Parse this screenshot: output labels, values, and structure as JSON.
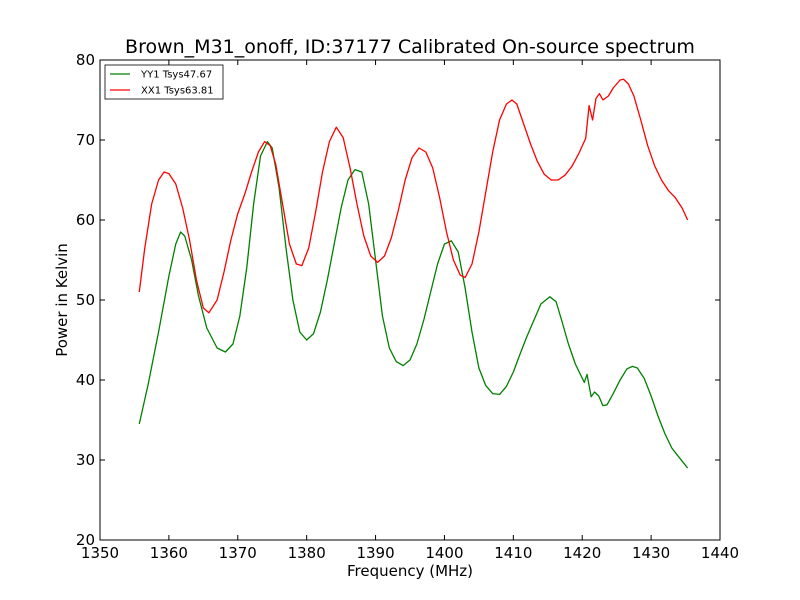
{
  "chart_data": {
    "type": "line",
    "title": "Brown_M31_onoff, ID:37177 Calibrated On-source spectrum",
    "xlabel": "Frequency (MHz)",
    "ylabel": "Power in Kelvin",
    "xlim": [
      1350,
      1440
    ],
    "ylim": [
      20,
      80
    ],
    "xticks": [
      "1350",
      "1360",
      "1370",
      "1380",
      "1390",
      "1400",
      "1410",
      "1420",
      "1430",
      "1440"
    ],
    "yticks": [
      "20",
      "30",
      "40",
      "50",
      "60",
      "70",
      "80"
    ],
    "grid": false,
    "legend_position": "top-left",
    "series": [
      {
        "name": "YY1 Tsys47.67",
        "color": "#008000",
        "points": [
          [
            1355.7,
            34.5
          ],
          [
            1357,
            39.5
          ],
          [
            1358.5,
            46
          ],
          [
            1360,
            53
          ],
          [
            1361,
            57
          ],
          [
            1361.7,
            58.5
          ],
          [
            1362.3,
            58
          ],
          [
            1363.3,
            55
          ],
          [
            1364.3,
            50.5
          ],
          [
            1365.5,
            46.5
          ],
          [
            1367,
            44
          ],
          [
            1368.2,
            43.5
          ],
          [
            1369.3,
            44.5
          ],
          [
            1370.3,
            48
          ],
          [
            1371.3,
            54
          ],
          [
            1372.3,
            62
          ],
          [
            1373.3,
            68
          ],
          [
            1374.3,
            69.8
          ],
          [
            1375,
            69
          ],
          [
            1376,
            64
          ],
          [
            1377,
            56.5
          ],
          [
            1378,
            50
          ],
          [
            1379,
            46
          ],
          [
            1380,
            45
          ],
          [
            1381,
            45.8
          ],
          [
            1382,
            48.5
          ],
          [
            1383,
            52.5
          ],
          [
            1384,
            57
          ],
          [
            1385,
            61.5
          ],
          [
            1386,
            65
          ],
          [
            1387,
            66.3
          ],
          [
            1388,
            66
          ],
          [
            1389,
            62
          ],
          [
            1390,
            55
          ],
          [
            1391,
            48
          ],
          [
            1392,
            44
          ],
          [
            1393,
            42.3
          ],
          [
            1394,
            41.8
          ],
          [
            1395,
            42.5
          ],
          [
            1396,
            44.5
          ],
          [
            1397,
            47.5
          ],
          [
            1398,
            51
          ],
          [
            1399,
            54.5
          ],
          [
            1400,
            57
          ],
          [
            1401,
            57.4
          ],
          [
            1402,
            56
          ],
          [
            1403,
            51.5
          ],
          [
            1404,
            46
          ],
          [
            1405,
            41.5
          ],
          [
            1406,
            39.3
          ],
          [
            1407,
            38.3
          ],
          [
            1408,
            38.2
          ],
          [
            1409,
            39.2
          ],
          [
            1410,
            41
          ],
          [
            1411,
            43.3
          ],
          [
            1412,
            45.5
          ],
          [
            1413,
            47.5
          ],
          [
            1414,
            49.5
          ],
          [
            1415.3,
            50.4
          ],
          [
            1416.2,
            49.8
          ],
          [
            1417,
            47.5
          ],
          [
            1418,
            44.5
          ],
          [
            1419,
            42
          ],
          [
            1420.3,
            39.7
          ],
          [
            1420.7,
            40.7
          ],
          [
            1421.3,
            37.9
          ],
          [
            1421.8,
            38.5
          ],
          [
            1422.4,
            38
          ],
          [
            1423,
            36.8
          ],
          [
            1423.6,
            36.9
          ],
          [
            1424.5,
            38.3
          ],
          [
            1425.5,
            40
          ],
          [
            1426.5,
            41.4
          ],
          [
            1427.3,
            41.7
          ],
          [
            1428,
            41.5
          ],
          [
            1429,
            40.2
          ],
          [
            1430,
            38
          ],
          [
            1431,
            35.5
          ],
          [
            1432,
            33.3
          ],
          [
            1433,
            31.5
          ],
          [
            1434,
            30.4
          ],
          [
            1435.3,
            29
          ]
        ]
      },
      {
        "name": "XX1 Tsys63.81",
        "color": "#ff0000",
        "points": [
          [
            1355.7,
            51
          ],
          [
            1356.5,
            56.5
          ],
          [
            1357.5,
            62
          ],
          [
            1358.5,
            65
          ],
          [
            1359.3,
            66
          ],
          [
            1360,
            65.8
          ],
          [
            1361,
            64.5
          ],
          [
            1362,
            61.5
          ],
          [
            1363,
            57.5
          ],
          [
            1364,
            52.5
          ],
          [
            1365,
            49
          ],
          [
            1365.8,
            48.4
          ],
          [
            1367,
            50
          ],
          [
            1368,
            53.5
          ],
          [
            1369,
            57.5
          ],
          [
            1370,
            60.8
          ],
          [
            1371,
            63.2
          ],
          [
            1372,
            66
          ],
          [
            1373,
            68.5
          ],
          [
            1373.9,
            69.8
          ],
          [
            1374.7,
            69.3
          ],
          [
            1375.5,
            67
          ],
          [
            1376.5,
            62
          ],
          [
            1377.5,
            57
          ],
          [
            1378.5,
            54.5
          ],
          [
            1379.3,
            54.3
          ],
          [
            1380.3,
            56.5
          ],
          [
            1381.3,
            61
          ],
          [
            1382.3,
            66
          ],
          [
            1383.3,
            69.8
          ],
          [
            1384.3,
            71.6
          ],
          [
            1385.3,
            70.3
          ],
          [
            1386.3,
            66.5
          ],
          [
            1387.3,
            62
          ],
          [
            1388.3,
            58
          ],
          [
            1389.3,
            55.5
          ],
          [
            1390.3,
            54.7
          ],
          [
            1391.3,
            55.5
          ],
          [
            1392.3,
            57.8
          ],
          [
            1393.3,
            61.2
          ],
          [
            1394.3,
            65
          ],
          [
            1395.3,
            67.8
          ],
          [
            1396.3,
            69
          ],
          [
            1397.3,
            68.5
          ],
          [
            1398.3,
            66.5
          ],
          [
            1399.3,
            62.8
          ],
          [
            1400.3,
            58.5
          ],
          [
            1401.3,
            55
          ],
          [
            1402.3,
            53.1
          ],
          [
            1403,
            52.8
          ],
          [
            1404,
            54.5
          ],
          [
            1405,
            58.5
          ],
          [
            1406,
            63.5
          ],
          [
            1407,
            68.5
          ],
          [
            1408,
            72.5
          ],
          [
            1409,
            74.5
          ],
          [
            1409.8,
            75
          ],
          [
            1410.5,
            74.5
          ],
          [
            1411.5,
            72
          ],
          [
            1412.5,
            69.5
          ],
          [
            1413.5,
            67.3
          ],
          [
            1414.5,
            65.7
          ],
          [
            1415.5,
            65
          ],
          [
            1416.5,
            65
          ],
          [
            1417.5,
            65.6
          ],
          [
            1418.5,
            66.7
          ],
          [
            1419.5,
            68.3
          ],
          [
            1420.5,
            70.2
          ],
          [
            1421,
            74.3
          ],
          [
            1421.5,
            72.5
          ],
          [
            1422,
            75.2
          ],
          [
            1422.5,
            75.8
          ],
          [
            1423,
            75
          ],
          [
            1423.8,
            75.5
          ],
          [
            1424.5,
            76.5
          ],
          [
            1425.5,
            77.5
          ],
          [
            1426,
            77.6
          ],
          [
            1426.7,
            77
          ],
          [
            1427.5,
            75.5
          ],
          [
            1428.5,
            72.5
          ],
          [
            1429.5,
            69.3
          ],
          [
            1430.5,
            66.8
          ],
          [
            1431.5,
            65
          ],
          [
            1432.5,
            63.7
          ],
          [
            1433.5,
            62.8
          ],
          [
            1434.5,
            61.5
          ],
          [
            1435.3,
            60
          ]
        ]
      }
    ]
  }
}
